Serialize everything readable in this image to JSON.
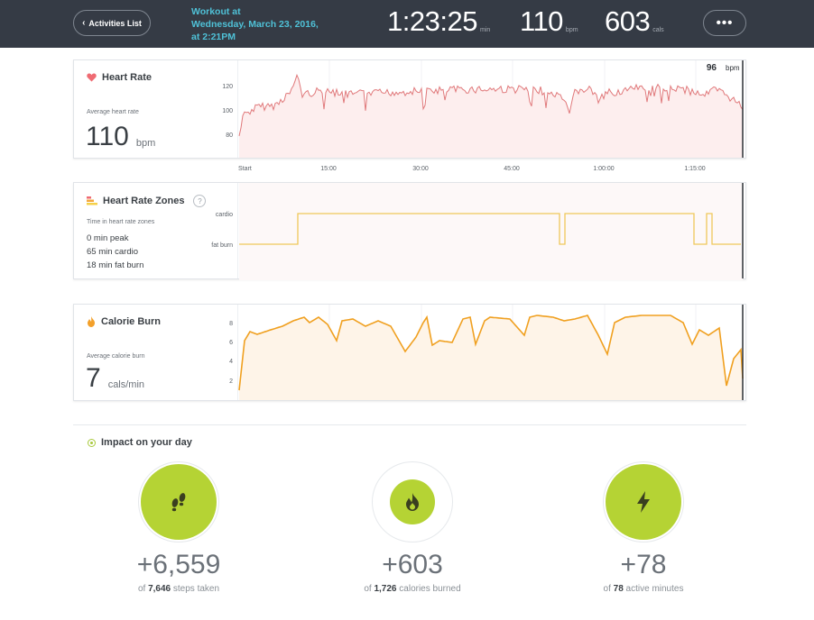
{
  "header": {
    "back_label": "Activities List",
    "workout_title": [
      "Workout at",
      "Wednesday, March 23, 2016,",
      "at 2:21PM"
    ],
    "duration": {
      "value": "1:23:25",
      "unit": "min"
    },
    "heart_rate": {
      "value": "110",
      "unit": "bpm"
    },
    "calories": {
      "value": "603",
      "unit": "cals"
    },
    "more_label": "•••"
  },
  "heart_rate_card": {
    "title": "Heart Rate",
    "avg_label": "Average heart rate",
    "avg_value": "110",
    "avg_unit": "bpm",
    "current_value": "96",
    "current_unit": "bpm",
    "y_ticks": [
      "120",
      "100",
      "80"
    ],
    "time_ticks": [
      "Start",
      "15:00",
      "30:00",
      "45:00",
      "1:00:00",
      "1:15:00"
    ]
  },
  "zones_card": {
    "title": "Heart Rate Zones",
    "help_label": "?",
    "time_label": "Time in heart rate zones",
    "zones": [
      "0 min peak",
      "65 min cardio",
      "18 min fat burn"
    ],
    "y_ticks": [
      "cardio",
      "fat burn"
    ]
  },
  "calorie_card": {
    "title": "Calorie Burn",
    "avg_label": "Average calorie burn",
    "avg_value": "7",
    "avg_unit": "cals/min",
    "y_ticks": [
      "8",
      "6",
      "4",
      "2"
    ]
  },
  "impact": {
    "title": "Impact on your day",
    "items": [
      {
        "value": "+6,559",
        "prefix": "of",
        "total": "7,646",
        "label": "steps taken"
      },
      {
        "value": "+603",
        "prefix": "of",
        "total": "1,726",
        "label": "calories burned"
      },
      {
        "value": "+78",
        "prefix": "of",
        "total": "78",
        "label": "active minutes"
      }
    ]
  },
  "colors": {
    "header_bg": "#353b45",
    "accent_teal": "#4fc1d7",
    "heart_line": "#e0787a",
    "zone_line": "#f0c85a",
    "calorie_line": "#f0a020",
    "impact_green": "#b5d334"
  }
}
